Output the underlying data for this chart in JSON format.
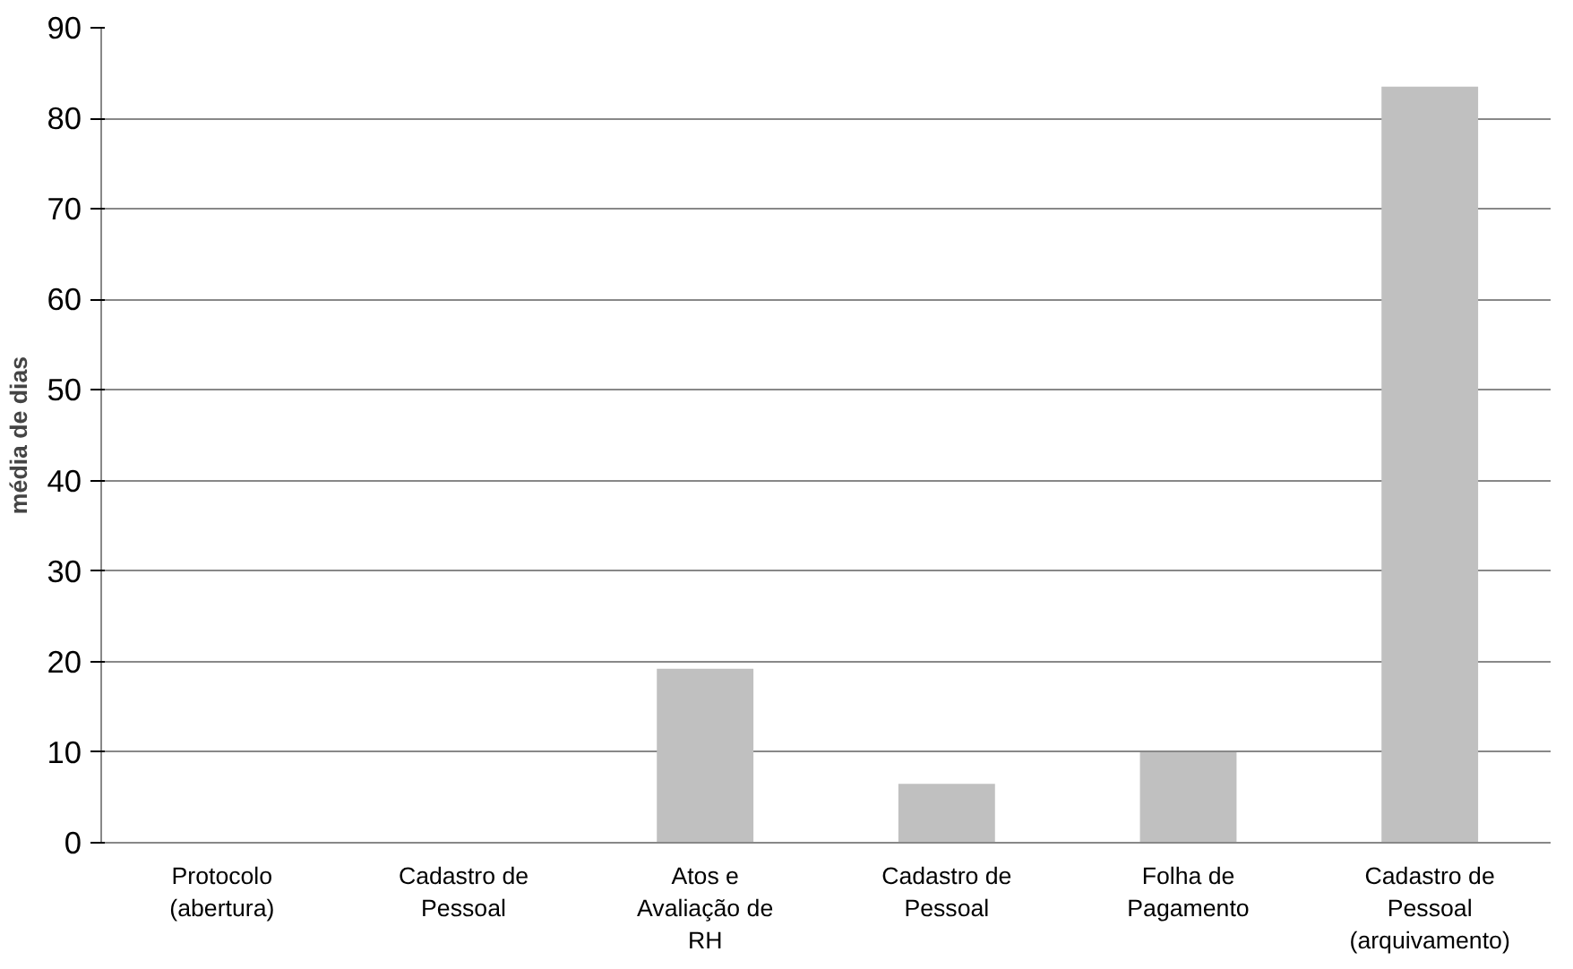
{
  "chart_data": {
    "type": "bar",
    "ylabel": "média de dias",
    "categories": [
      "Protocolo (abertura)",
      "Cadastro de Pessoal",
      "Atos e Avaliação de RH",
      "Cadastro de Pessoal",
      "Folha de Pagamento",
      "Cadastro de Pessoal (arquivamento)"
    ],
    "values": [
      0,
      0,
      19.2,
      6.5,
      10,
      83.5
    ],
    "color": "#c0c0c0",
    "ylim": [
      0,
      90
    ],
    "yticks": [
      0,
      10,
      20,
      30,
      40,
      50,
      60,
      70,
      80,
      90
    ],
    "grid": "y"
  }
}
